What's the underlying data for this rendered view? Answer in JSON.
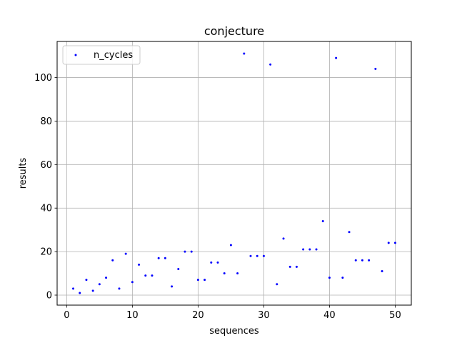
{
  "chart_data": {
    "type": "scatter",
    "title": "conjecture",
    "xlabel": "sequences",
    "ylabel": "results",
    "xlim": [
      -1.45,
      52.45
    ],
    "ylim": [
      -4.6,
      116.6
    ],
    "xticks": [
      0,
      10,
      20,
      30,
      40,
      50
    ],
    "yticks": [
      0,
      20,
      40,
      60,
      80,
      100
    ],
    "grid": true,
    "legend": "top-left",
    "marker_color": "#0000ff",
    "series": [
      {
        "name": "n_cycles",
        "x": [
          1,
          2,
          3,
          4,
          5,
          6,
          7,
          8,
          9,
          10,
          11,
          12,
          13,
          14,
          15,
          16,
          17,
          18,
          19,
          20,
          21,
          22,
          23,
          24,
          25,
          26,
          27,
          28,
          29,
          30,
          31,
          32,
          33,
          34,
          35,
          36,
          37,
          38,
          39,
          40,
          41,
          42,
          43,
          44,
          45,
          46,
          47,
          48,
          49,
          50
        ],
        "y": [
          3,
          1,
          7,
          2,
          5,
          8,
          16,
          3,
          19,
          6,
          14,
          9,
          9,
          17,
          17,
          4,
          12,
          20,
          20,
          7,
          7,
          15,
          15,
          10,
          23,
          10,
          111,
          18,
          18,
          18,
          106,
          5,
          26,
          13,
          13,
          21,
          21,
          21,
          34,
          8,
          109,
          8,
          29,
          16,
          16,
          16,
          104,
          11,
          24,
          24
        ]
      }
    ]
  }
}
